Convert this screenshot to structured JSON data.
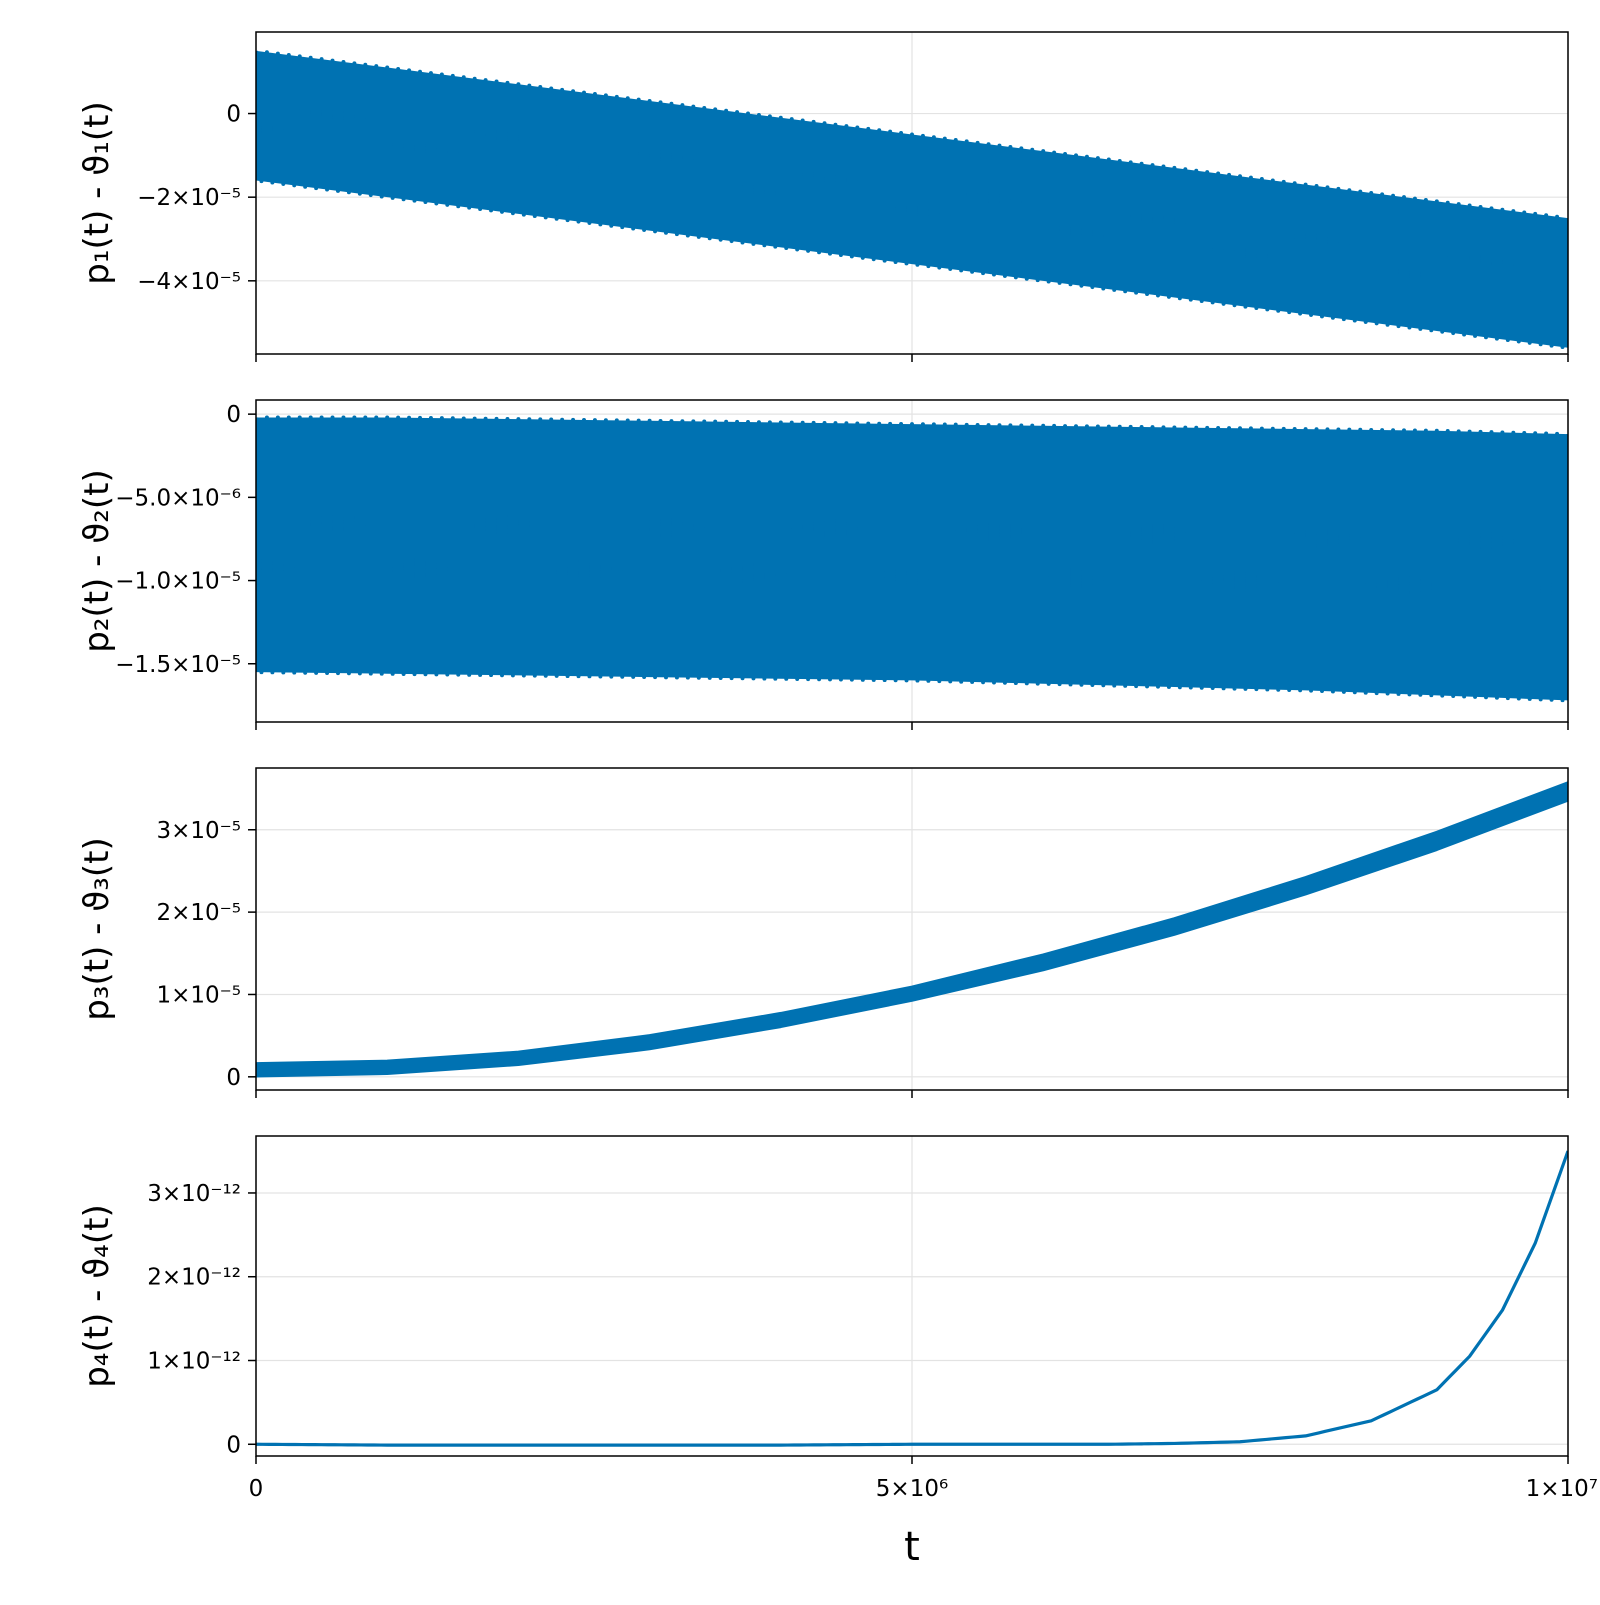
{
  "figure": {
    "x_axis": {
      "title": "t",
      "range": [
        0,
        10000000
      ],
      "ticks": [
        {
          "value": 0,
          "label": "0"
        },
        {
          "value": 5000000,
          "label": "5×10⁶"
        },
        {
          "value": 10000000,
          "label": "1×10⁷"
        }
      ]
    }
  },
  "colors": {
    "series": "#0072b2",
    "grid": "#e3e3e3",
    "axis": "#000000"
  },
  "chart_data": [
    {
      "type": "line",
      "ylabel": "p₁(t) - ϑ₁(t)",
      "ylim": [
        -5.75e-05,
        1.95e-05
      ],
      "grid": true,
      "yticks": [
        {
          "value": 0,
          "label": "0"
        },
        {
          "value": -2e-05,
          "label": "−2×10⁻⁵"
        },
        {
          "value": -4e-05,
          "label": "−4×10⁻⁵"
        }
      ],
      "band_cycles": 120,
      "series": [
        {
          "x": [
            0,
            1000000,
            2000000,
            3000000,
            4000000,
            5000000,
            6000000,
            7000000,
            8000000,
            9000000,
            10000000
          ],
          "upper": [
            1.5e-05,
            1.1e-05,
            7e-06,
            3e-06,
            -1e-06,
            -5e-06,
            -9e-06,
            -1.3e-05,
            -1.7e-05,
            -2.1e-05,
            -2.5e-05
          ],
          "lower": [
            -1.6e-05,
            -2e-05,
            -2.4e-05,
            -2.8e-05,
            -3.2e-05,
            -3.6e-05,
            -4e-05,
            -4.4e-05,
            -4.8e-05,
            -5.2e-05,
            -5.6e-05
          ]
        }
      ]
    },
    {
      "type": "line",
      "ylabel": "p₂(t) - ϑ₂(t)",
      "ylim": [
        -1.85e-05,
        8.5e-07
      ],
      "grid": true,
      "yticks": [
        {
          "value": 0,
          "label": "0"
        },
        {
          "value": -5e-06,
          "label": "−5.0×10⁻⁶"
        },
        {
          "value": -1e-05,
          "label": "−1.0×10⁻⁵"
        },
        {
          "value": -1.5e-05,
          "label": "−1.5×10⁻⁵"
        }
      ],
      "band_cycles": 120,
      "series": [
        {
          "x": [
            0,
            1000000,
            2000000,
            3000000,
            4000000,
            5000000,
            6000000,
            7000000,
            8000000,
            9000000,
            10000000
          ],
          "upper": [
            -2e-07,
            -2e-07,
            -3e-07,
            -4e-07,
            -5e-07,
            -6e-07,
            -7e-07,
            -8e-07,
            -9e-07,
            -1e-06,
            -1.2e-06
          ],
          "lower": [
            -1.55e-05,
            -1.56e-05,
            -1.57e-05,
            -1.58e-05,
            -1.59e-05,
            -1.6e-05,
            -1.62e-05,
            -1.64e-05,
            -1.66e-05,
            -1.69e-05,
            -1.72e-05
          ]
        }
      ]
    },
    {
      "type": "line",
      "ylabel": "p₃(t) - ϑ₃(t)",
      "ylim": [
        -1.6e-06,
        3.75e-05
      ],
      "grid": true,
      "yticks": [
        {
          "value": 0,
          "label": "0"
        },
        {
          "value": 1e-05,
          "label": "1×10⁻⁵"
        },
        {
          "value": 2e-05,
          "label": "2×10⁻⁵"
        },
        {
          "value": 3e-05,
          "label": "3×10⁻⁵"
        }
      ],
      "band_cycles": 0,
      "series": [
        {
          "x": [
            0,
            1000000,
            2000000,
            3000000,
            4000000,
            5000000,
            6000000,
            7000000,
            8000000,
            9000000,
            10000000
          ],
          "upper": [
            1.6e-06,
            1.9e-06,
            3e-06,
            5e-06,
            7.7e-06,
            1.09e-05,
            1.48e-05,
            1.92e-05,
            2.42e-05,
            2.97e-05,
            3.57e-05
          ],
          "lower": [
            1e-07,
            4e-07,
            1.5e-06,
            3.4e-06,
            6.1e-06,
            9.3e-06,
            1.3e-05,
            1.73e-05,
            2.22e-05,
            2.76e-05,
            3.36e-05
          ]
        }
      ]
    },
    {
      "type": "line",
      "ylabel": "p₄(t) - ϑ₄(t)",
      "ylim": [
        -1.4e-13,
        3.68e-12
      ],
      "grid": true,
      "yticks": [
        {
          "value": 0,
          "label": "0"
        },
        {
          "value": 1e-12,
          "label": "1×10⁻¹²"
        },
        {
          "value": 2e-12,
          "label": "2×10⁻¹²"
        },
        {
          "value": 3e-12,
          "label": "3×10⁻¹²"
        }
      ],
      "band_cycles": 0,
      "series": [
        {
          "x": [
            0,
            1000000,
            2000000,
            3000000,
            4000000,
            5000000,
            6000000,
            6500000,
            7000000,
            7500000,
            8000000,
            8500000,
            9000000,
            9250000,
            9500000,
            9750000,
            10000000
          ],
          "y": [
            0,
            -1e-14,
            -1e-14,
            -1e-14,
            -1e-14,
            0,
            0,
            0,
            1e-14,
            3e-14,
            1e-13,
            2.8e-13,
            6.5e-13,
            1.05e-12,
            1.6e-12,
            2.4e-12,
            3.5e-12
          ]
        }
      ]
    }
  ]
}
